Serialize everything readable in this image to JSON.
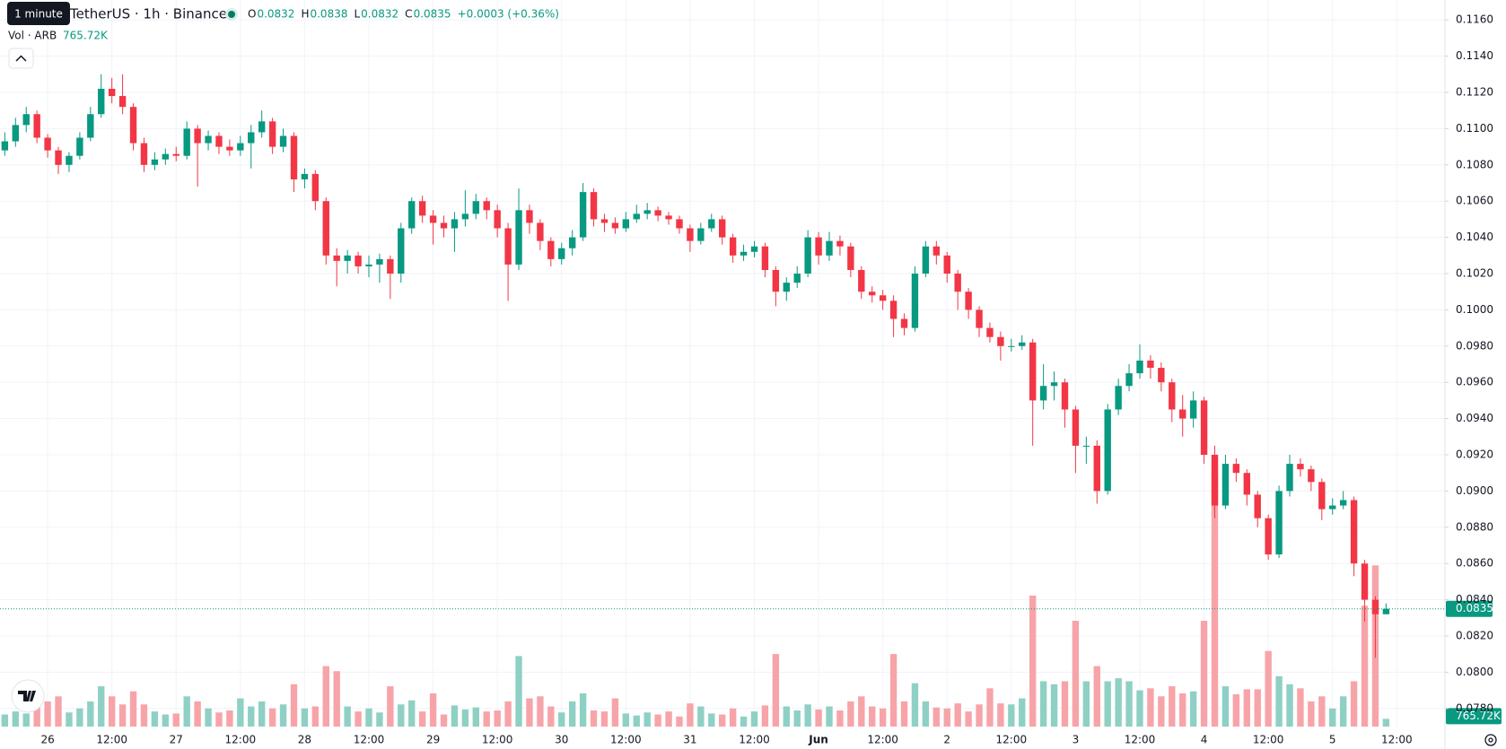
{
  "chart_data": {
    "type": "candlestick",
    "header": {
      "tooltip": "1 minute",
      "title": "TetherUS · 1h · Binance",
      "o_label": "O",
      "h_label": "H",
      "l_label": "L",
      "c_label": "C",
      "change": "+0.0003 (+0.36%)",
      "volume_title": "Vol · ARB"
    },
    "up_color": "#089981",
    "down_color": "#f23645",
    "volume_up_color": "#8fd0c5",
    "volume_down_color": "#f7a4a9",
    "grid": true,
    "xlim": [
      -0.45,
      134.5
    ],
    "ylim": [
      0.077,
      0.1171
    ],
    "xticks": [
      {
        "value": 4,
        "label": "26"
      },
      {
        "value": 10,
        "label": "12:00"
      },
      {
        "value": 16,
        "label": "27"
      },
      {
        "value": 22,
        "label": "12:00"
      },
      {
        "value": 28,
        "label": "28"
      },
      {
        "value": 34,
        "label": "12:00"
      },
      {
        "value": 40,
        "label": "29"
      },
      {
        "value": 46,
        "label": "12:00"
      },
      {
        "value": 52,
        "label": "30"
      },
      {
        "value": 58,
        "label": "12:00"
      },
      {
        "value": 64,
        "label": "31"
      },
      {
        "value": 70,
        "label": "12:00"
      },
      {
        "value": 76,
        "label": "Jun"
      },
      {
        "value": 82,
        "label": "12:00"
      },
      {
        "value": 88,
        "label": "2"
      },
      {
        "value": 94,
        "label": "12:00"
      },
      {
        "value": 100,
        "label": "3"
      },
      {
        "value": 106,
        "label": "12:00"
      },
      {
        "value": 112,
        "label": "4"
      },
      {
        "value": 118,
        "label": "12:00"
      },
      {
        "value": 124,
        "label": "5"
      },
      {
        "value": 130,
        "label": "12:00"
      }
    ],
    "yticks": [
      {
        "value": 0.078,
        "label": "0.0780"
      },
      {
        "value": 0.08,
        "label": "0.0800"
      },
      {
        "value": 0.082,
        "label": "0.0820"
      },
      {
        "value": 0.084,
        "label": "0.0840"
      },
      {
        "value": 0.086,
        "label": "0.0860"
      },
      {
        "value": 0.088,
        "label": "0.0880"
      },
      {
        "value": 0.09,
        "label": "0.0900"
      },
      {
        "value": 0.092,
        "label": "0.0920"
      },
      {
        "value": 0.094,
        "label": "0.0940"
      },
      {
        "value": 0.096,
        "label": "0.0960"
      },
      {
        "value": 0.098,
        "label": "0.0980"
      },
      {
        "value": 0.1,
        "label": "0.1000"
      },
      {
        "value": 0.102,
        "label": "0.1020"
      },
      {
        "value": 0.104,
        "label": "0.1040"
      },
      {
        "value": 0.106,
        "label": "0.1060"
      },
      {
        "value": 0.108,
        "label": "0.1080"
      },
      {
        "value": 0.11,
        "label": "0.1100"
      },
      {
        "value": 0.112,
        "label": "0.1120"
      },
      {
        "value": 0.114,
        "label": "0.1140"
      },
      {
        "value": 0.116,
        "label": "0.1160"
      }
    ],
    "ohlc": [
      [
        0.1088,
        0.1098,
        0.1085,
        0.1093
      ],
      [
        0.1093,
        0.1106,
        0.109,
        0.1102
      ],
      [
        0.1102,
        0.1112,
        0.1098,
        0.1108
      ],
      [
        0.1108,
        0.111,
        0.1092,
        0.1095
      ],
      [
        0.1095,
        0.1097,
        0.1084,
        0.1088
      ],
      [
        0.1088,
        0.109,
        0.1075,
        0.108
      ],
      [
        0.108,
        0.1087,
        0.1076,
        0.1085
      ],
      [
        0.1085,
        0.1098,
        0.1083,
        0.1095
      ],
      [
        0.1095,
        0.1112,
        0.1093,
        0.1108
      ],
      [
        0.1108,
        0.113,
        0.1106,
        0.1122
      ],
      [
        0.1122,
        0.1128,
        0.1114,
        0.1118
      ],
      [
        0.1118,
        0.113,
        0.1108,
        0.1112
      ],
      [
        0.1112,
        0.1114,
        0.1088,
        0.1092
      ],
      [
        0.1092,
        0.1095,
        0.1076,
        0.108
      ],
      [
        0.108,
        0.1087,
        0.1077,
        0.1083
      ],
      [
        0.1083,
        0.1089,
        0.108,
        0.1086
      ],
      [
        0.1086,
        0.109,
        0.1082,
        0.1085
      ],
      [
        0.1085,
        0.1104,
        0.1083,
        0.11
      ],
      [
        0.11,
        0.1102,
        0.1068,
        0.1092
      ],
      [
        0.1092,
        0.1099,
        0.1088,
        0.1096
      ],
      [
        0.1096,
        0.1098,
        0.1086,
        0.109
      ],
      [
        0.109,
        0.1094,
        0.1085,
        0.1088
      ],
      [
        0.1088,
        0.1096,
        0.1085,
        0.1092
      ],
      [
        0.1092,
        0.1102,
        0.1078,
        0.1098
      ],
      [
        0.1098,
        0.111,
        0.1095,
        0.1104
      ],
      [
        0.1104,
        0.1106,
        0.1086,
        0.109
      ],
      [
        0.109,
        0.11,
        0.1087,
        0.1096
      ],
      [
        0.1096,
        0.1098,
        0.1065,
        0.1072
      ],
      [
        0.1072,
        0.1078,
        0.1067,
        0.1075
      ],
      [
        0.1075,
        0.1077,
        0.1055,
        0.106
      ],
      [
        0.106,
        0.1062,
        0.1025,
        0.103
      ],
      [
        0.103,
        0.1034,
        0.1013,
        0.1027
      ],
      [
        0.1027,
        0.1033,
        0.102,
        0.103
      ],
      [
        0.103,
        0.1032,
        0.102,
        0.1024
      ],
      [
        0.1024,
        0.103,
        0.1018,
        0.1025
      ],
      [
        0.1025,
        0.1031,
        0.1015,
        0.1028
      ],
      [
        0.1028,
        0.103,
        0.1006,
        0.102
      ],
      [
        0.102,
        0.1048,
        0.1015,
        0.1045
      ],
      [
        0.1045,
        0.1062,
        0.1042,
        0.106
      ],
      [
        0.106,
        0.1063,
        0.1048,
        0.1052
      ],
      [
        0.1052,
        0.1055,
        0.1036,
        0.1048
      ],
      [
        0.1048,
        0.1052,
        0.104,
        0.1045
      ],
      [
        0.1045,
        0.1054,
        0.1032,
        0.105
      ],
      [
        0.105,
        0.1066,
        0.1046,
        0.1053
      ],
      [
        0.1053,
        0.1064,
        0.105,
        0.106
      ],
      [
        0.106,
        0.1062,
        0.105,
        0.1055
      ],
      [
        0.1055,
        0.1058,
        0.104,
        0.1045
      ],
      [
        0.1045,
        0.1048,
        0.1005,
        0.1025
      ],
      [
        0.1025,
        0.1067,
        0.1022,
        0.1055
      ],
      [
        0.1055,
        0.1058,
        0.1042,
        0.1048
      ],
      [
        0.1048,
        0.105,
        0.1033,
        0.1038
      ],
      [
        0.1038,
        0.104,
        0.1024,
        0.1028
      ],
      [
        0.1028,
        0.1037,
        0.1025,
        0.1034
      ],
      [
        0.1034,
        0.1044,
        0.103,
        0.104
      ],
      [
        0.104,
        0.107,
        0.1038,
        0.1065
      ],
      [
        0.1065,
        0.1067,
        0.1046,
        0.105
      ],
      [
        0.105,
        0.1053,
        0.1043,
        0.1048
      ],
      [
        0.1048,
        0.1051,
        0.1042,
        0.1045
      ],
      [
        0.1045,
        0.1054,
        0.1043,
        0.105
      ],
      [
        0.105,
        0.1058,
        0.1048,
        0.1053
      ],
      [
        0.1053,
        0.1059,
        0.105,
        0.1055
      ],
      [
        0.1055,
        0.1057,
        0.1049,
        0.1052
      ],
      [
        0.1052,
        0.1054,
        0.1047,
        0.105
      ],
      [
        0.105,
        0.1052,
        0.1042,
        0.1045
      ],
      [
        0.1045,
        0.1047,
        0.1032,
        0.1038
      ],
      [
        0.1038,
        0.1048,
        0.1036,
        0.1045
      ],
      [
        0.1045,
        0.1053,
        0.1043,
        0.105
      ],
      [
        0.105,
        0.1052,
        0.1036,
        0.104
      ],
      [
        0.104,
        0.1042,
        0.1026,
        0.103
      ],
      [
        0.103,
        0.1036,
        0.1027,
        0.1032
      ],
      [
        0.1032,
        0.1038,
        0.1029,
        0.1035
      ],
      [
        0.1035,
        0.1037,
        0.1018,
        0.1022
      ],
      [
        0.1022,
        0.1024,
        0.1002,
        0.101
      ],
      [
        0.101,
        0.1018,
        0.1005,
        0.1015
      ],
      [
        0.1015,
        0.1024,
        0.1012,
        0.102
      ],
      [
        0.102,
        0.1044,
        0.1018,
        0.104
      ],
      [
        0.104,
        0.1043,
        0.1025,
        0.103
      ],
      [
        0.103,
        0.1043,
        0.1027,
        0.1038
      ],
      [
        0.1038,
        0.1041,
        0.103,
        0.1035
      ],
      [
        0.1035,
        0.1037,
        0.1018,
        0.1022
      ],
      [
        0.1022,
        0.1024,
        0.1006,
        0.101
      ],
      [
        0.101,
        0.1013,
        0.1004,
        0.1008
      ],
      [
        0.1008,
        0.1011,
        0.1,
        0.1005
      ],
      [
        0.1005,
        0.1008,
        0.0985,
        0.0995
      ],
      [
        0.0995,
        0.0998,
        0.0986,
        0.099
      ],
      [
        0.099,
        0.1024,
        0.0988,
        0.102
      ],
      [
        0.102,
        0.1038,
        0.1018,
        0.1035
      ],
      [
        0.1035,
        0.1038,
        0.1025,
        0.103
      ],
      [
        0.103,
        0.1032,
        0.1015,
        0.102
      ],
      [
        0.102,
        0.1022,
        0.1,
        0.101
      ],
      [
        0.101,
        0.1012,
        0.0995,
        0.1
      ],
      [
        0.1,
        0.1002,
        0.0985,
        0.099
      ],
      [
        0.099,
        0.0993,
        0.0982,
        0.0985
      ],
      [
        0.0985,
        0.0988,
        0.0972,
        0.098
      ],
      [
        0.098,
        0.0984,
        0.0977,
        0.098
      ],
      [
        0.098,
        0.0986,
        0.0978,
        0.0982
      ],
      [
        0.0982,
        0.0984,
        0.0925,
        0.095
      ],
      [
        0.095,
        0.097,
        0.0945,
        0.0958
      ],
      [
        0.0958,
        0.0966,
        0.095,
        0.096
      ],
      [
        0.096,
        0.0962,
        0.0935,
        0.0945
      ],
      [
        0.0945,
        0.0947,
        0.091,
        0.0925
      ],
      [
        0.0925,
        0.093,
        0.0915,
        0.0925
      ],
      [
        0.0925,
        0.0928,
        0.0893,
        0.09
      ],
      [
        0.09,
        0.0948,
        0.0898,
        0.0945
      ],
      [
        0.0945,
        0.0962,
        0.0942,
        0.0958
      ],
      [
        0.0958,
        0.097,
        0.0955,
        0.0965
      ],
      [
        0.0965,
        0.0981,
        0.0962,
        0.0972
      ],
      [
        0.0972,
        0.0975,
        0.0962,
        0.0968
      ],
      [
        0.0968,
        0.0971,
        0.0955,
        0.096
      ],
      [
        0.096,
        0.0962,
        0.0938,
        0.0945
      ],
      [
        0.0945,
        0.0953,
        0.093,
        0.094
      ],
      [
        0.094,
        0.0955,
        0.0935,
        0.095
      ],
      [
        0.095,
        0.0952,
        0.0915,
        0.092
      ],
      [
        0.092,
        0.0925,
        0.0885,
        0.0892
      ],
      [
        0.0892,
        0.092,
        0.089,
        0.0915
      ],
      [
        0.0915,
        0.0918,
        0.0905,
        0.091
      ],
      [
        0.091,
        0.0912,
        0.0892,
        0.0898
      ],
      [
        0.0898,
        0.09,
        0.088,
        0.0885
      ],
      [
        0.0885,
        0.0887,
        0.0862,
        0.0865
      ],
      [
        0.0865,
        0.0903,
        0.0863,
        0.09
      ],
      [
        0.09,
        0.092,
        0.0897,
        0.0915
      ],
      [
        0.0915,
        0.0918,
        0.0908,
        0.0912
      ],
      [
        0.0912,
        0.0914,
        0.09,
        0.0905
      ],
      [
        0.0905,
        0.0907,
        0.0884,
        0.089
      ],
      [
        0.089,
        0.0896,
        0.0887,
        0.0892
      ],
      [
        0.0892,
        0.09,
        0.089,
        0.0895
      ],
      [
        0.0895,
        0.0897,
        0.0853,
        0.086
      ],
      [
        0.086,
        0.0862,
        0.0828,
        0.084
      ],
      [
        0.084,
        0.0842,
        0.0808,
        0.0832
      ],
      [
        0.0832,
        0.0838,
        0.0832,
        0.0835
      ]
    ],
    "volume": {
      "vlim": [
        0,
        30000000
      ],
      "last_label": "765.72K",
      "values": [
        1200000,
        1500000,
        1300000,
        2000000,
        2500000,
        3000000,
        1400000,
        1800000,
        2500000,
        4000000,
        3000000,
        2200000,
        3500000,
        2200000,
        1500000,
        1200000,
        1300000,
        3000000,
        2500000,
        1800000,
        1400000,
        1600000,
        2800000,
        2000000,
        2500000,
        1800000,
        2200000,
        4200000,
        1800000,
        2000000,
        6000000,
        5500000,
        2000000,
        1500000,
        1800000,
        1400000,
        4000000,
        2200000,
        2600000,
        1500000,
        3300000,
        1200000,
        2100000,
        1700000,
        1900000,
        1500000,
        1600000,
        2500000,
        7000000,
        2800000,
        3000000,
        2000000,
        1400000,
        2500000,
        3300000,
        1600000,
        1500000,
        2800000,
        1300000,
        1100000,
        1400000,
        1200000,
        1500000,
        1000000,
        2300000,
        2000000,
        1300000,
        1200000,
        1800000,
        1000000,
        1500000,
        2100000,
        7200000,
        2000000,
        1600000,
        2200000,
        1700000,
        2000000,
        1600000,
        2500000,
        3000000,
        2000000,
        1800000,
        7200000,
        2500000,
        4300000,
        2500000,
        1900000,
        1800000,
        2300000,
        1500000,
        2200000,
        3800000,
        2300000,
        2200000,
        2800000,
        13000000,
        4500000,
        4200000,
        4500000,
        10500000,
        4500000,
        6000000,
        4500000,
        4800000,
        4500000,
        3600000,
        3800000,
        3000000,
        4000000,
        3300000,
        3500000,
        10500000,
        25000000,
        4000000,
        3200000,
        3700000,
        3700000,
        7500000,
        5000000,
        4200000,
        3800000,
        2500000,
        3000000,
        1800000,
        3000000,
        4500000,
        12000000,
        16000000,
        765720
      ]
    }
  }
}
